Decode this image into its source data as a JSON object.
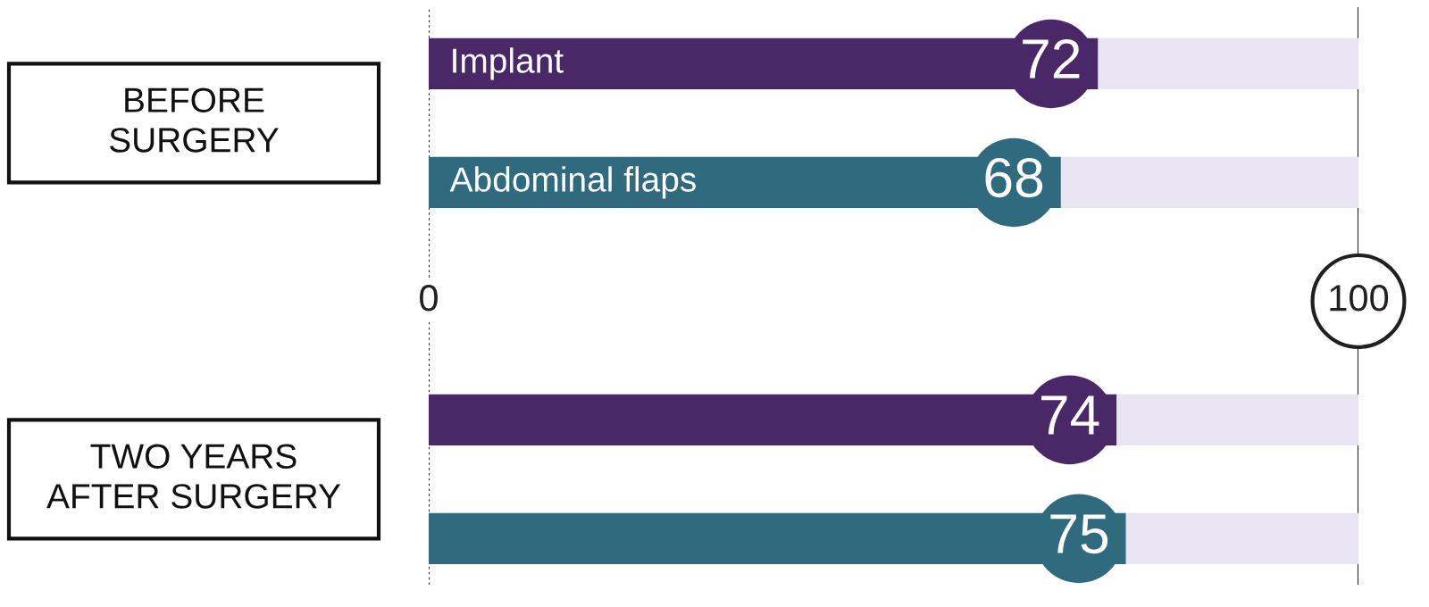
{
  "chart_data": {
    "type": "bar",
    "orientation": "horizontal",
    "stacked": true,
    "categories": [
      null,
      null,
      null,
      null,
      null
    ],
    "series": [
      {
        "name": "Implant",
        "color": "#4a2868",
        "values": [
          72,
          null,
          null,
          74,
          null
        ],
        "value_labels": [
          "72",
          null,
          null,
          "74",
          null
        ]
      },
      {
        "name": "Abdominal flaps",
        "color": "#2f6a7f",
        "values": [
          null,
          68,
          null,
          null,
          75
        ],
        "value_labels": [
          null,
          "68",
          null,
          null,
          "75"
        ]
      },
      {
        "color": "#e9e4f1",
        "values": [
          28,
          32,
          null,
          26,
          25
        ]
      }
    ],
    "xlim": [
      0,
      100
    ],
    "xticks": [
      0,
      100
    ],
    "tick_labels": "x",
    "ref_lines": [
      {
        "axis": "x",
        "value": 0,
        "line_style": "dotted",
        "color": "#231f20"
      },
      {
        "axis": "x",
        "value": 100,
        "line_style": "solid",
        "color": "#231f20"
      }
    ],
    "annotations": [
      "BEFORE\nSURGERY",
      "TWO YEARS\nAFTER SURGERY"
    ]
  }
}
